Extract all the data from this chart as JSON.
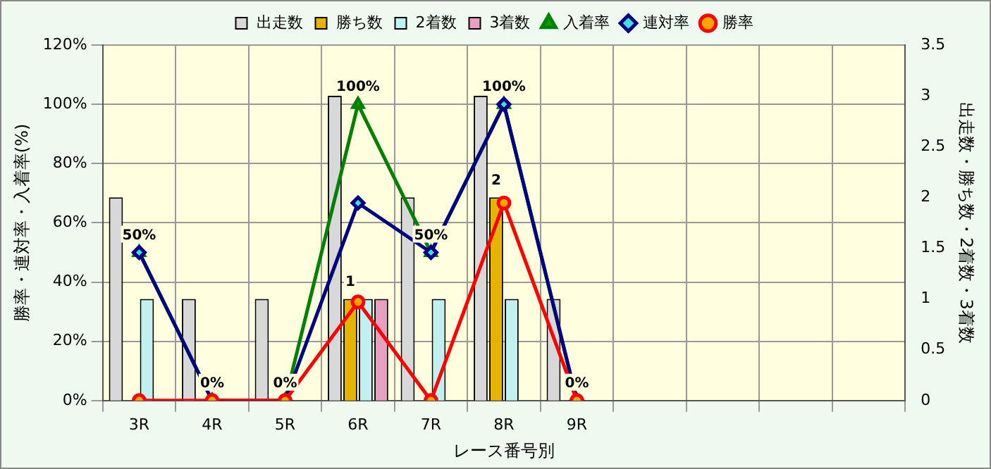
{
  "chart_data": {
    "type": "bar",
    "xlabel": "レース番号別",
    "ylabel": "勝率・連対率・入着率(%)",
    "y2label": "出走数・勝ち数・2着数・3着数",
    "categories": [
      "3R",
      "4R",
      "5R",
      "6R",
      "7R",
      "8R",
      "9R",
      null,
      null,
      null,
      null
    ],
    "series": [
      {
        "name": "出走数",
        "axis": "y2",
        "color": "#d8d8d8",
        "values": [
          2,
          1,
          1,
          3,
          2,
          3,
          1,
          null,
          null,
          null,
          null
        ]
      },
      {
        "name": "勝ち数",
        "axis": "y2",
        "color": "#e6b400",
        "values": [
          0,
          0,
          0,
          1,
          0,
          2,
          0,
          null,
          null,
          null,
          null
        ],
        "value_labels": [
          null,
          null,
          null,
          "1",
          null,
          "2",
          null,
          null,
          null,
          null,
          null
        ]
      },
      {
        "name": "2着数",
        "axis": "y2",
        "color": "#c0f0f0",
        "values": [
          1,
          0,
          0,
          1,
          1,
          1,
          0,
          null,
          null,
          null,
          null
        ]
      },
      {
        "name": "3着数",
        "axis": "y2",
        "color": "#e8a0c0",
        "values": [
          0,
          0,
          0,
          1,
          0,
          0,
          0,
          null,
          null,
          null,
          null
        ]
      },
      {
        "name": "入着率",
        "type": "line",
        "color": "#008000",
        "marker": "triangle",
        "values": [
          50,
          0,
          0,
          100,
          50,
          100,
          0,
          null,
          null,
          null,
          null
        ],
        "value_labels": [
          "50%",
          "0%",
          "0%",
          "100%",
          "50%",
          "100%",
          "0%",
          null,
          null,
          null,
          null
        ]
      },
      {
        "name": "連対率",
        "type": "line",
        "color": "#000080",
        "marker": "diamond",
        "values": [
          50,
          0,
          0,
          66.7,
          50,
          100,
          0,
          null,
          null,
          null,
          null
        ]
      },
      {
        "name": "勝率",
        "type": "line",
        "color": "#ff0000",
        "marker": "circle",
        "values": [
          0,
          0,
          0,
          33.3,
          0,
          66.7,
          0,
          null,
          null,
          null,
          null
        ]
      }
    ],
    "ylim": [
      0,
      120
    ],
    "yticks": [
      {
        "value": 0,
        "label": "0%"
      },
      {
        "value": 20,
        "label": "20%"
      },
      {
        "value": 40,
        "label": "40%"
      },
      {
        "value": 60,
        "label": "60%"
      },
      {
        "value": 80,
        "label": "80%"
      },
      {
        "value": 100,
        "label": "100%"
      },
      {
        "value": 120,
        "label": "120%"
      }
    ],
    "y2lim": [
      0,
      3.5
    ],
    "y2ticks": [
      0,
      0.5,
      1,
      1.5,
      2,
      2.5,
      3,
      3.5
    ],
    "grid": true,
    "legend": "top"
  }
}
